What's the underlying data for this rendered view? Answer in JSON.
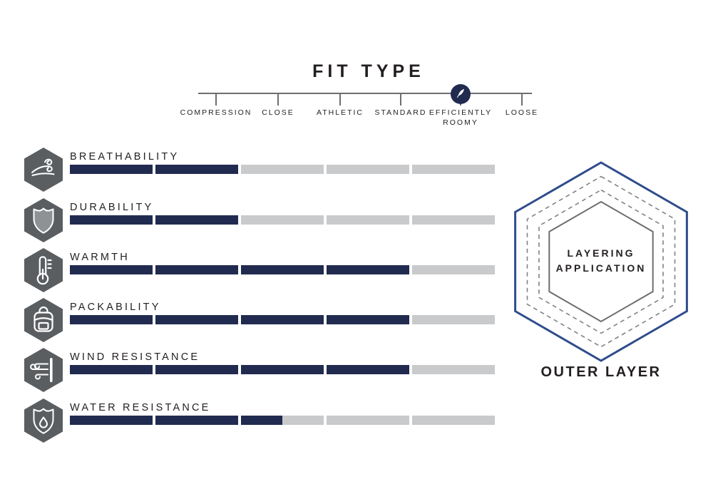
{
  "fit_type": {
    "title": "FIT TYPE",
    "options": [
      "COMPRESSION",
      "CLOSE",
      "ATHLETIC",
      "STANDARD",
      "EFFICIENTLY ROOMY",
      "LOOSE"
    ],
    "selected": "EFFICIENTLY ROOMY",
    "selected_index": 4,
    "marker_icon": "feather-icon"
  },
  "attributes": [
    {
      "label": "BREATHABILITY",
      "icon": "wind-breath-icon",
      "value": 2,
      "max": 5
    },
    {
      "label": "DURABILITY",
      "icon": "shield-icon",
      "value": 2,
      "max": 5
    },
    {
      "label": "WARMTH",
      "icon": "thermometer-icon",
      "value": 4,
      "max": 5
    },
    {
      "label": "PACKABILITY",
      "icon": "backpack-icon",
      "value": 4,
      "max": 5
    },
    {
      "label": "WIND RESISTANCE",
      "icon": "wind-barrier-icon",
      "value": 4,
      "max": 5
    },
    {
      "label": "WATER RESISTANCE",
      "icon": "water-shield-icon",
      "value": 2.5,
      "max": 5
    }
  ],
  "layering": {
    "title_line1": "LAYERING",
    "title_line2": "APPLICATION",
    "caption": "OUTER LAYER",
    "rings": [
      "solid-blue",
      "dashed",
      "dashed",
      "solid-gray"
    ]
  },
  "colors": {
    "navy": "#212b50",
    "bar_gray": "#c9cacb",
    "icon_hex_gray": "#5b5e61",
    "scale_line": "#6d6e71",
    "text": "#231f20",
    "hex_blue": "#2f4d8c",
    "hex_dash_gray": "#808285",
    "hex_inner_gray": "#6d6e71"
  },
  "chart_data": {
    "type": "bar",
    "title": "FIT TYPE",
    "categories": [
      "BREATHABILITY",
      "DURABILITY",
      "WARMTH",
      "PACKABILITY",
      "WIND RESISTANCE",
      "WATER RESISTANCE"
    ],
    "values": [
      2,
      2,
      4,
      4,
      4,
      2.5
    ],
    "xlabel": "",
    "ylabel": "",
    "xlim": [
      0,
      5
    ],
    "segments_per_bar": 5,
    "orientation": "horizontal",
    "grid": false,
    "legend_position": "none",
    "fit_scale": {
      "options": [
        "COMPRESSION",
        "CLOSE",
        "ATHLETIC",
        "STANDARD",
        "EFFICIENTLY ROOMY",
        "LOOSE"
      ],
      "selected": "EFFICIENTLY ROOMY"
    },
    "annotations": [
      "LAYERING APPLICATION",
      "OUTER LAYER"
    ]
  }
}
